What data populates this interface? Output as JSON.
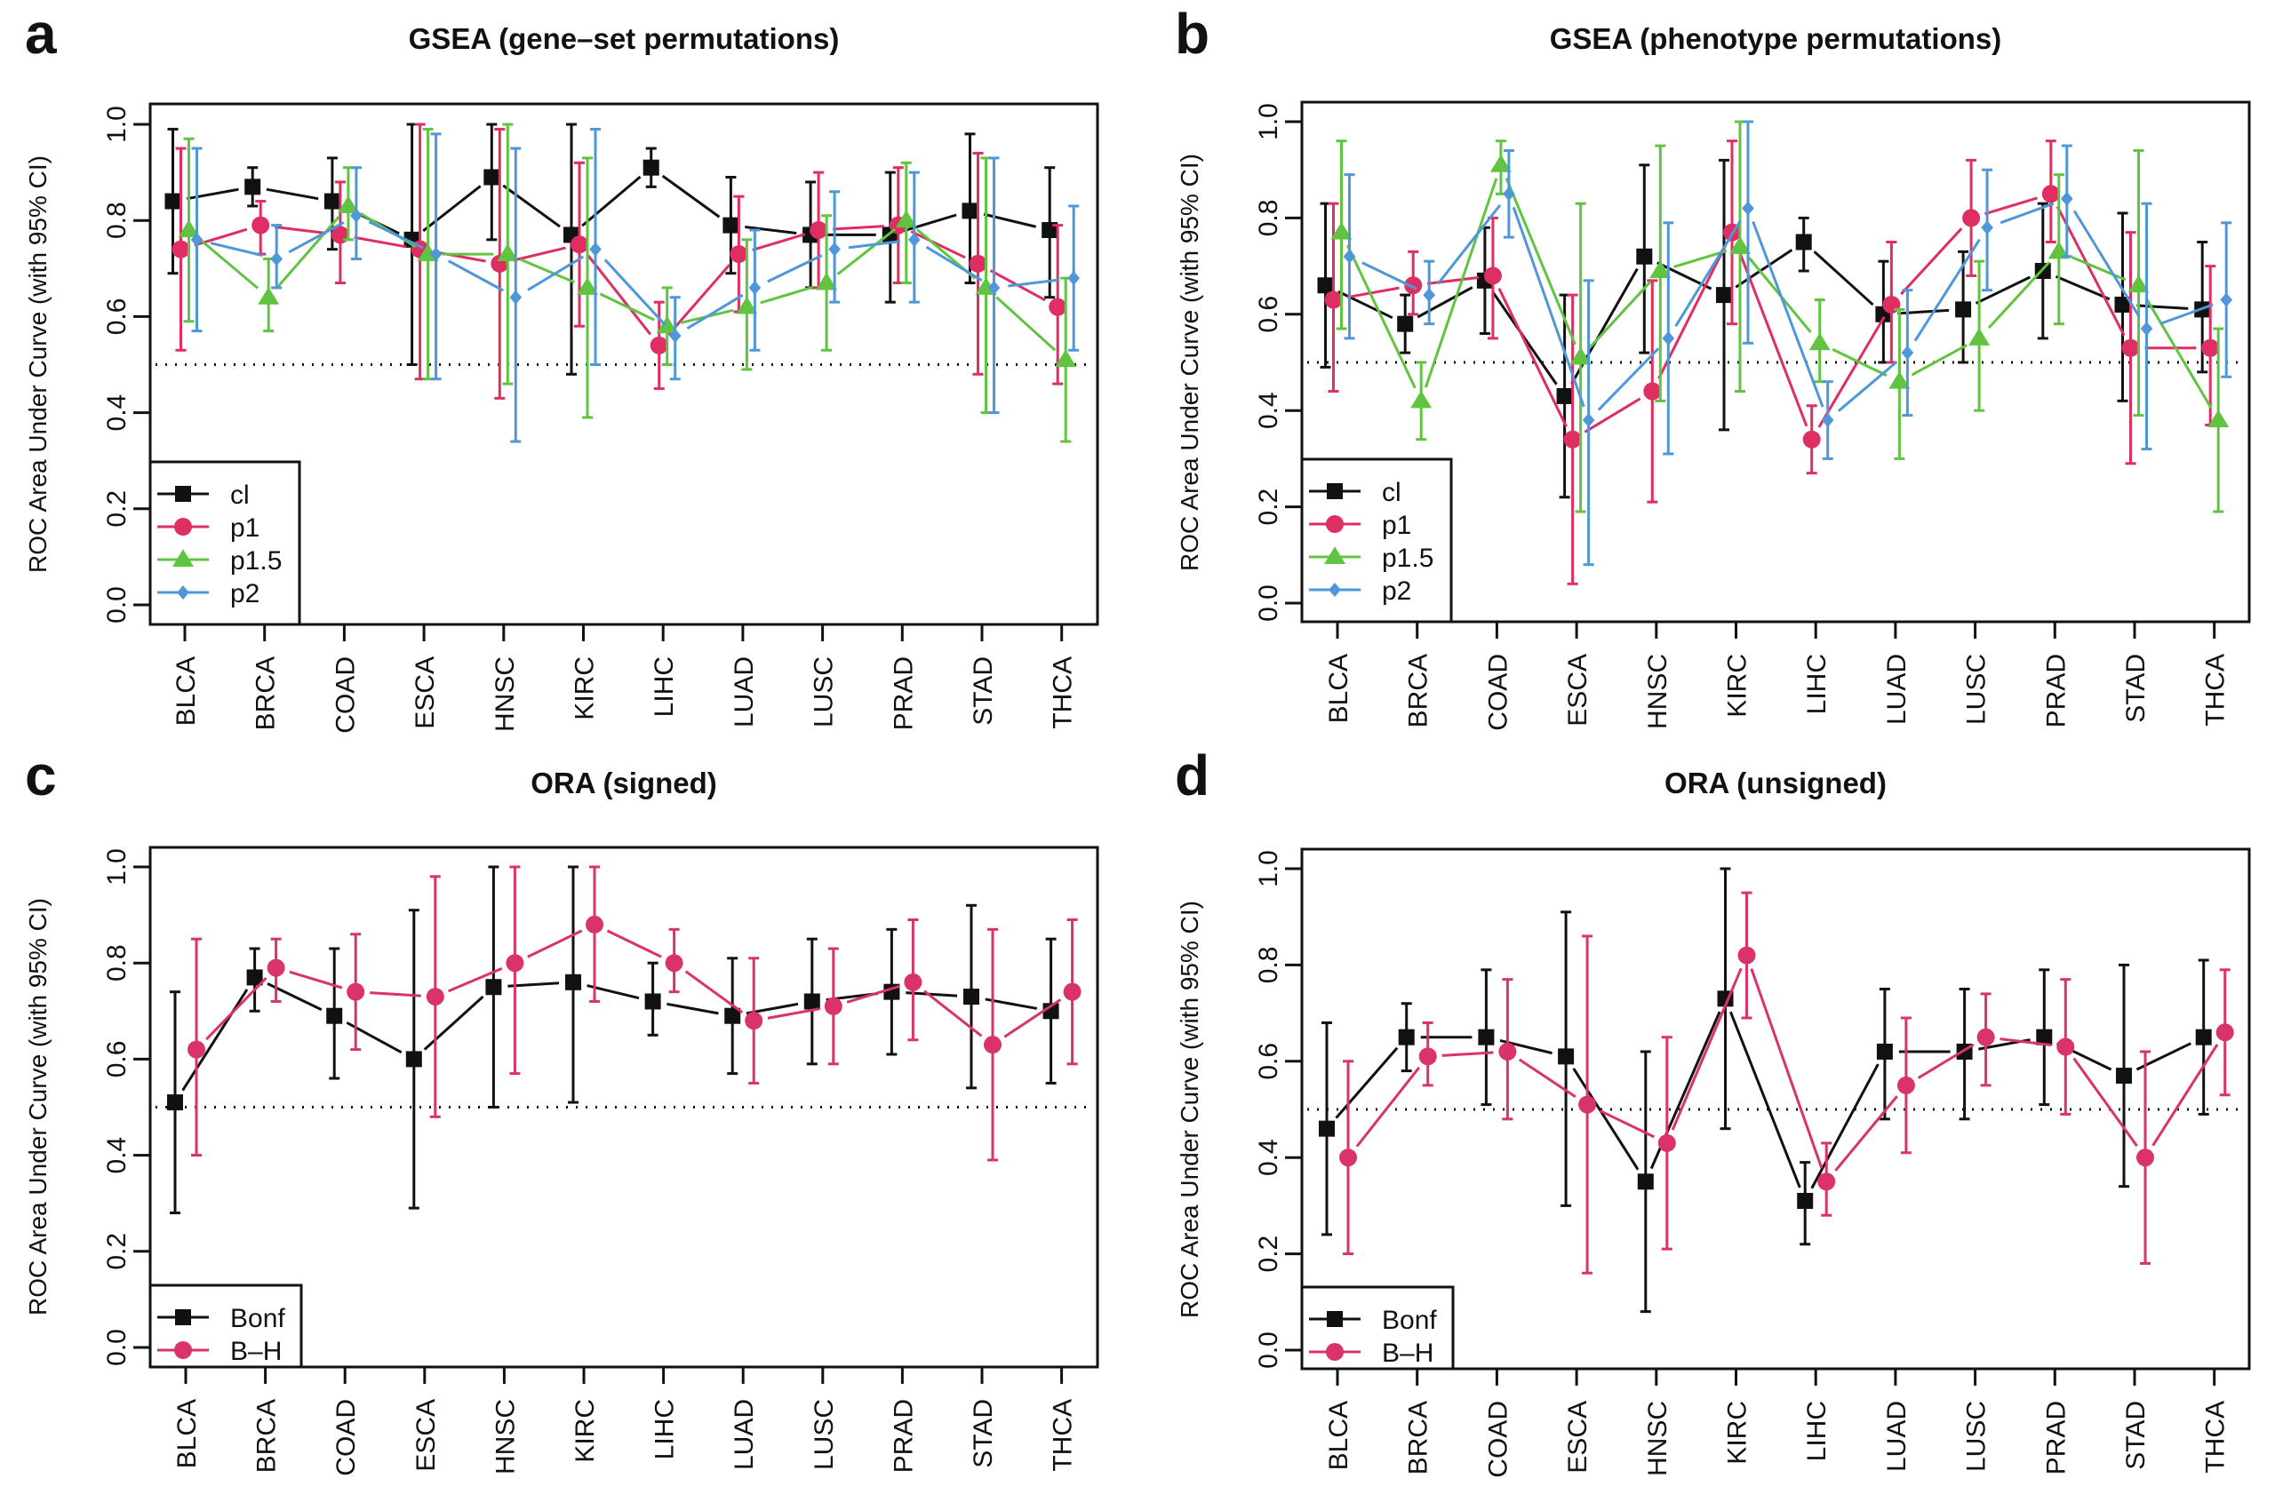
{
  "figure": {
    "colors": {
      "cl": "#111111",
      "p1": "#DF2E62",
      "p1.5": "#61C441",
      "p2": "#4E97D8",
      "Bonf": "#111111",
      "B-H": "#D9336A"
    }
  },
  "chart_data": [
    {
      "panel": "a",
      "type": "line",
      "title": "GSEA (gene–set permutations)",
      "xlabel": "",
      "ylabel": "ROC Area Under Curve (with 95% CI)",
      "ylim": [
        0.0,
        1.0
      ],
      "yticks": [
        "0.0",
        "0.2",
        "0.4",
        "0.6",
        "0.8",
        "1.0"
      ],
      "reference_line": 0.5,
      "grid": false,
      "legend_position": "bottom-left",
      "categories": [
        "BLCA",
        "BRCA",
        "COAD",
        "ESCA",
        "HNSC",
        "KIRC",
        "LIHC",
        "LUAD",
        "LUSC",
        "PRAD",
        "STAD",
        "THCA"
      ],
      "series": [
        {
          "name": "cl",
          "marker": "square",
          "values": [
            0.84,
            0.87,
            0.84,
            0.76,
            0.89,
            0.77,
            0.91,
            0.79,
            0.77,
            0.77,
            0.82,
            0.78
          ],
          "lower": [
            0.69,
            0.83,
            0.74,
            0.5,
            0.76,
            0.48,
            0.87,
            0.69,
            0.66,
            0.63,
            0.67,
            0.64
          ],
          "upper": [
            0.99,
            0.91,
            0.93,
            1.0,
            1.0,
            1.0,
            0.95,
            0.89,
            0.88,
            0.9,
            0.98,
            0.91
          ]
        },
        {
          "name": "p1",
          "marker": "circle",
          "values": [
            0.74,
            0.79,
            0.77,
            0.74,
            0.71,
            0.75,
            0.54,
            0.73,
            0.78,
            0.79,
            0.71,
            0.62
          ],
          "lower": [
            0.53,
            0.73,
            0.67,
            0.47,
            0.43,
            0.58,
            0.45,
            0.61,
            0.66,
            0.67,
            0.48,
            0.46
          ],
          "upper": [
            0.95,
            0.84,
            0.88,
            1.0,
            0.99,
            0.92,
            0.63,
            0.85,
            0.9,
            0.91,
            0.94,
            0.79
          ]
        },
        {
          "name": "p1.5",
          "marker": "triangle",
          "values": [
            0.78,
            0.64,
            0.83,
            0.73,
            0.73,
            0.66,
            0.58,
            0.62,
            0.67,
            0.8,
            0.66,
            0.51
          ],
          "lower": [
            0.59,
            0.57,
            0.76,
            0.47,
            0.46,
            0.39,
            0.5,
            0.49,
            0.53,
            0.67,
            0.4,
            0.34
          ],
          "upper": [
            0.97,
            0.72,
            0.91,
            0.99,
            1.0,
            0.93,
            0.66,
            0.76,
            0.81,
            0.92,
            0.93,
            0.68
          ]
        },
        {
          "name": "p2",
          "marker": "diamond",
          "values": [
            0.76,
            0.72,
            0.81,
            0.73,
            0.64,
            0.74,
            0.56,
            0.66,
            0.74,
            0.76,
            0.66,
            0.68
          ],
          "lower": [
            0.57,
            0.66,
            0.72,
            0.47,
            0.34,
            0.5,
            0.47,
            0.53,
            0.63,
            0.63,
            0.4,
            0.53
          ],
          "upper": [
            0.95,
            0.79,
            0.91,
            0.98,
            0.95,
            0.99,
            0.64,
            0.78,
            0.86,
            0.9,
            0.93,
            0.83
          ]
        }
      ]
    },
    {
      "panel": "b",
      "type": "line",
      "title": "GSEA (phenotype permutations)",
      "xlabel": "",
      "ylabel": "ROC Area Under Curve (with 95% CI)",
      "ylim": [
        0.0,
        1.0
      ],
      "yticks": [
        "0.0",
        "0.2",
        "0.4",
        "0.6",
        "0.8",
        "1.0"
      ],
      "reference_line": 0.5,
      "grid": false,
      "legend_position": "bottom-left",
      "categories": [
        "BLCA",
        "BRCA",
        "COAD",
        "ESCA",
        "HNSC",
        "KIRC",
        "LIHC",
        "LUAD",
        "LUSC",
        "PRAD",
        "STAD",
        "THCA"
      ],
      "series": [
        {
          "name": "cl",
          "marker": "square",
          "values": [
            0.66,
            0.58,
            0.67,
            0.43,
            0.72,
            0.64,
            0.75,
            0.6,
            0.61,
            0.69,
            0.62,
            0.61
          ],
          "lower": [
            0.49,
            0.52,
            0.56,
            0.22,
            0.52,
            0.36,
            0.69,
            0.5,
            0.5,
            0.55,
            0.42,
            0.48
          ],
          "upper": [
            0.83,
            0.64,
            0.78,
            0.64,
            0.91,
            0.92,
            0.8,
            0.71,
            0.73,
            0.83,
            0.81,
            0.75
          ]
        },
        {
          "name": "p1",
          "marker": "circle",
          "values": [
            0.63,
            0.66,
            0.68,
            0.34,
            0.44,
            0.77,
            0.34,
            0.62,
            0.8,
            0.85,
            0.53,
            0.53
          ],
          "lower": [
            0.44,
            0.6,
            0.55,
            0.04,
            0.21,
            0.58,
            0.27,
            0.5,
            0.68,
            0.75,
            0.29,
            0.37
          ],
          "upper": [
            0.83,
            0.73,
            0.8,
            0.64,
            0.67,
            0.96,
            0.41,
            0.75,
            0.92,
            0.96,
            0.77,
            0.7
          ]
        },
        {
          "name": "p1.5",
          "marker": "triangle",
          "values": [
            0.77,
            0.42,
            0.91,
            0.51,
            0.69,
            0.74,
            0.54,
            0.46,
            0.55,
            0.73,
            0.66,
            0.38
          ],
          "lower": [
            0.57,
            0.34,
            0.85,
            0.19,
            0.42,
            0.44,
            0.46,
            0.3,
            0.4,
            0.58,
            0.39,
            0.19
          ],
          "upper": [
            0.96,
            0.5,
            0.96,
            0.83,
            0.95,
            1.0,
            0.63,
            0.61,
            0.71,
            0.89,
            0.94,
            0.57
          ]
        },
        {
          "name": "p2",
          "marker": "diamond",
          "values": [
            0.72,
            0.64,
            0.85,
            0.38,
            0.55,
            0.82,
            0.38,
            0.52,
            0.78,
            0.84,
            0.57,
            0.63
          ],
          "lower": [
            0.55,
            0.58,
            0.76,
            0.08,
            0.31,
            0.54,
            0.3,
            0.39,
            0.65,
            0.72,
            0.32,
            0.47
          ],
          "upper": [
            0.89,
            0.71,
            0.94,
            0.67,
            0.79,
            1.0,
            0.46,
            0.65,
            0.9,
            0.95,
            0.83,
            0.79
          ]
        }
      ]
    },
    {
      "panel": "c",
      "type": "line",
      "title": "ORA (signed)",
      "xlabel": "",
      "ylabel": "ROC Area Under Curve (with 95% CI)",
      "ylim": [
        0.0,
        1.0
      ],
      "yticks": [
        "0.0",
        "0.2",
        "0.4",
        "0.6",
        "0.8",
        "1.0"
      ],
      "reference_line": 0.5,
      "grid": false,
      "legend_position": "bottom-left",
      "categories": [
        "BLCA",
        "BRCA",
        "COAD",
        "ESCA",
        "HNSC",
        "KIRC",
        "LIHC",
        "LUAD",
        "LUSC",
        "PRAD",
        "STAD",
        "THCA"
      ],
      "series": [
        {
          "name": "Bonf",
          "marker": "square",
          "values": [
            0.51,
            0.77,
            0.69,
            0.6,
            0.75,
            0.76,
            0.72,
            0.69,
            0.72,
            0.74,
            0.73,
            0.7
          ],
          "lower": [
            0.28,
            0.7,
            0.56,
            0.29,
            0.5,
            0.51,
            0.65,
            0.57,
            0.59,
            0.61,
            0.54,
            0.55
          ],
          "upper": [
            0.74,
            0.83,
            0.83,
            0.91,
            1.0,
            1.0,
            0.8,
            0.81,
            0.85,
            0.87,
            0.92,
            0.85
          ]
        },
        {
          "name": "B–H",
          "marker": "circle",
          "values": [
            0.62,
            0.79,
            0.74,
            0.73,
            0.8,
            0.88,
            0.8,
            0.68,
            0.71,
            0.76,
            0.63,
            0.74
          ],
          "lower": [
            0.4,
            0.72,
            0.62,
            0.48,
            0.57,
            0.72,
            0.74,
            0.55,
            0.59,
            0.64,
            0.39,
            0.59
          ],
          "upper": [
            0.85,
            0.85,
            0.86,
            0.98,
            1.0,
            1.0,
            0.87,
            0.81,
            0.83,
            0.89,
            0.87,
            0.89
          ]
        }
      ]
    },
    {
      "panel": "d",
      "type": "line",
      "title": "ORA (unsigned)",
      "xlabel": "",
      "ylabel": "ROC Area Under Curve (with 95% CI)",
      "ylim": [
        0.0,
        1.0
      ],
      "yticks": [
        "0.0",
        "0.2",
        "0.4",
        "0.6",
        "0.8",
        "1.0"
      ],
      "reference_line": 0.5,
      "grid": false,
      "legend_position": "bottom-left",
      "categories": [
        "BLCA",
        "BRCA",
        "COAD",
        "ESCA",
        "HNSC",
        "KIRC",
        "LIHC",
        "LUAD",
        "LUSC",
        "PRAD",
        "STAD",
        "THCA"
      ],
      "series": [
        {
          "name": "Bonf",
          "marker": "square",
          "values": [
            0.46,
            0.65,
            0.65,
            0.61,
            0.35,
            0.73,
            0.31,
            0.62,
            0.62,
            0.65,
            0.57,
            0.65
          ],
          "lower": [
            0.24,
            0.58,
            0.51,
            0.3,
            0.08,
            0.46,
            0.22,
            0.48,
            0.48,
            0.51,
            0.34,
            0.49
          ],
          "upper": [
            0.68,
            0.72,
            0.79,
            0.91,
            0.62,
            1.0,
            0.39,
            0.75,
            0.75,
            0.79,
            0.8,
            0.81
          ]
        },
        {
          "name": "B–H",
          "marker": "circle",
          "values": [
            0.4,
            0.61,
            0.62,
            0.51,
            0.43,
            0.82,
            0.35,
            0.55,
            0.65,
            0.63,
            0.4,
            0.66
          ],
          "lower": [
            0.2,
            0.55,
            0.48,
            0.16,
            0.21,
            0.69,
            0.28,
            0.41,
            0.55,
            0.49,
            0.18,
            0.53
          ],
          "upper": [
            0.6,
            0.68,
            0.77,
            0.86,
            0.65,
            0.95,
            0.43,
            0.69,
            0.74,
            0.77,
            0.62,
            0.79
          ]
        }
      ]
    }
  ]
}
